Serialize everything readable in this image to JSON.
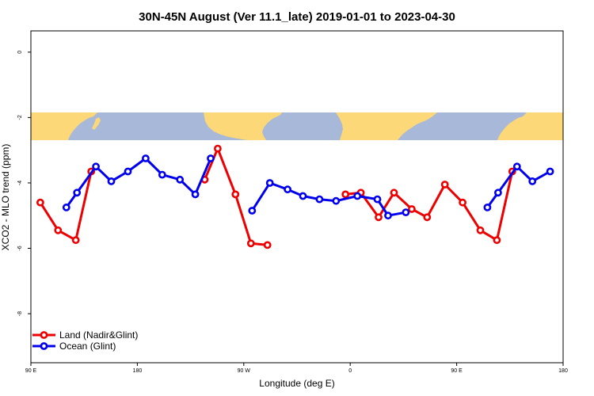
{
  "chart_data": {
    "type": "line",
    "title": "30N-45N August (Ver 11.1_late)   2019-01-01 to 2023-04-30",
    "xlabel": "Longitude (deg E)",
    "ylabel": "XCO2 - MLO trend (ppm)",
    "xlim": [
      90,
      540
    ],
    "ylim": [
      -9.5,
      0.65
    ],
    "x_ticks": [
      {
        "value": 90,
        "label": "90 E"
      },
      {
        "value": 180,
        "label": "180"
      },
      {
        "value": 270,
        "label": "90 W"
      },
      {
        "value": 360,
        "label": "0"
      },
      {
        "value": 450,
        "label": "90 E"
      },
      {
        "value": 540,
        "label": "180"
      }
    ],
    "y_ticks": [
      {
        "value": 0,
        "label": "0"
      },
      {
        "value": -2,
        "label": "-2"
      },
      {
        "value": -4,
        "label": "-4"
      },
      {
        "value": -6,
        "label": "-6"
      },
      {
        "value": -8,
        "label": "-8"
      }
    ],
    "legend_position": "bottom-left",
    "series": [
      {
        "name": "Land (Nadir&Glint)",
        "color": "#ee0000",
        "segments": [
          [
            [
              98,
              -4.6
            ],
            [
              113,
              -5.45
            ],
            [
              128,
              -5.75
            ],
            [
              141,
              -3.65
            ]
          ],
          [
            [
              237,
              -3.9
            ],
            [
              248,
              -2.95
            ],
            [
              263,
              -4.35
            ],
            [
              276,
              -5.85
            ],
            [
              290,
              -5.9
            ]
          ],
          [
            [
              356,
              -4.35
            ],
            [
              369,
              -4.3
            ],
            [
              384,
              -5.05
            ],
            [
              397,
              -4.3
            ],
            [
              412,
              -4.8
            ],
            [
              425,
              -5.05
            ],
            [
              440,
              -4.05
            ],
            [
              455,
              -4.6
            ],
            [
              470,
              -5.45
            ],
            [
              484,
              -5.75
            ],
            [
              497,
              -3.65
            ]
          ]
        ]
      },
      {
        "name": "Ocean (Glint)",
        "color": "#0000ee",
        "segments": [
          [
            [
              120,
              -4.75
            ],
            [
              129,
              -4.3
            ],
            [
              145,
              -3.5
            ],
            [
              158,
              -3.95
            ],
            [
              172,
              -3.65
            ],
            [
              187,
              -3.25
            ],
            [
              201,
              -3.75
            ],
            [
              216,
              -3.9
            ],
            [
              229,
              -4.35
            ],
            [
              242,
              -3.25
            ]
          ],
          [
            [
              277,
              -4.85
            ],
            [
              292,
              -4.0
            ],
            [
              307,
              -4.2
            ],
            [
              320,
              -4.4
            ],
            [
              334,
              -4.5
            ],
            [
              348,
              -4.55
            ],
            [
              366,
              -4.4
            ],
            [
              383,
              -4.5
            ],
            [
              392,
              -5.0
            ],
            [
              407,
              -4.9
            ]
          ],
          [
            [
              476,
              -4.75
            ],
            [
              485,
              -4.3
            ],
            [
              501,
              -3.5
            ],
            [
              514,
              -3.95
            ],
            [
              529,
              -3.65
            ]
          ]
        ]
      }
    ]
  }
}
